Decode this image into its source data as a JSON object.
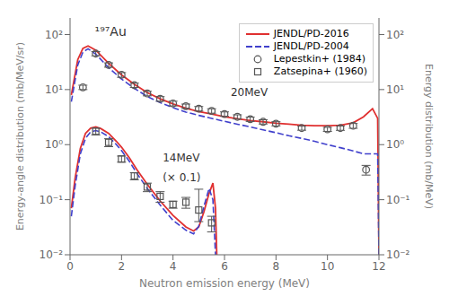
{
  "chart_data": {
    "type": "line",
    "xlabel": "Neutron emission energy (MeV)",
    "ylabel": "Energy-angle distribution (mb/MeV/sr)",
    "y2label": "Energy distribution (mb/MeV)",
    "log": "y",
    "xlim": [
      0,
      12
    ],
    "xticks": [
      0,
      2,
      4,
      6,
      8,
      10,
      12
    ],
    "ylim": [
      0.01,
      200
    ],
    "yticks": [
      {
        "value": 0.01,
        "label": "10⁻²"
      },
      {
        "value": 0.1,
        "label": "10⁻¹"
      },
      {
        "value": 1,
        "label": "10⁰"
      },
      {
        "value": 10,
        "label": "10¹"
      },
      {
        "value": 100,
        "label": "10²"
      }
    ],
    "y2lim": [
      0.01,
      200
    ],
    "y2ticks": [
      {
        "value": 0.01,
        "label": "10⁻²"
      },
      {
        "value": 0.1,
        "label": "10⁻¹"
      },
      {
        "value": 1,
        "label": "10⁰"
      },
      {
        "value": 10,
        "label": "10¹"
      },
      {
        "value": 100,
        "label": "10²"
      }
    ],
    "grid": false,
    "legend": "upper right",
    "annotations": [
      "¹⁹⁷Au",
      "20MeV",
      "14MeV",
      "(× 0.1)"
    ],
    "series": [
      {
        "name": "JENDL/PD-2016",
        "type": "line",
        "color": "#e03030",
        "line_style": "solid",
        "x": [
          0.05,
          0.3,
          0.5,
          0.7,
          1.0,
          1.5,
          2.0,
          2.5,
          3.0,
          3.5,
          4.0,
          4.5,
          5.0,
          5.5,
          6.0,
          6.5,
          7.0,
          7.5,
          8.0,
          8.5,
          9.0,
          9.5,
          10.0,
          10.5,
          11.0,
          11.4,
          11.75,
          11.95,
          12.0
        ],
        "values": [
          8.0,
          35.0,
          56.0,
          62.0,
          52.0,
          30.0,
          18.5,
          12.5,
          8.8,
          6.8,
          5.5,
          4.6,
          4.0,
          3.6,
          3.2,
          2.95,
          2.75,
          2.6,
          2.45,
          2.35,
          2.25,
          2.2,
          2.2,
          2.25,
          2.5,
          3.2,
          4.5,
          3.0,
          0.01
        ]
      },
      {
        "name": "JENDL/PD-2004",
        "type": "line",
        "color": "#4040cc",
        "line_style": "dashed",
        "x": [
          0.05,
          0.3,
          0.5,
          0.7,
          1.0,
          1.5,
          2.0,
          2.5,
          3.0,
          3.5,
          4.0,
          4.5,
          5.0,
          5.5,
          6.0,
          6.5,
          7.0,
          7.5,
          8.0,
          8.5,
          9.0,
          9.5,
          10.0,
          10.5,
          11.0,
          11.4,
          11.5,
          11.95,
          12.0
        ],
        "values": [
          6.0,
          28.0,
          48.0,
          55.0,
          44.0,
          25.0,
          15.5,
          10.5,
          7.5,
          5.8,
          4.7,
          3.9,
          3.4,
          3.0,
          2.65,
          2.35,
          2.1,
          1.85,
          1.65,
          1.45,
          1.3,
          1.15,
          1.0,
          0.88,
          0.77,
          0.68,
          0.68,
          0.68,
          0.01
        ]
      },
      {
        "type": "line",
        "color": "#e03030",
        "line_style": "solid",
        "x": [
          0.05,
          0.2,
          0.4,
          0.6,
          0.8,
          1.0,
          1.2,
          1.5,
          1.8,
          2.0,
          2.3,
          2.6,
          3.0,
          3.5,
          4.0,
          4.5,
          4.8,
          5.0,
          5.2,
          5.4,
          5.55,
          5.65,
          5.7
        ],
        "values": [
          0.07,
          0.25,
          0.85,
          1.6,
          2.0,
          2.1,
          1.95,
          1.6,
          1.15,
          0.9,
          0.58,
          0.35,
          0.19,
          0.095,
          0.052,
          0.032,
          0.027,
          0.032,
          0.06,
          0.13,
          0.2,
          0.07,
          0.01
        ]
      },
      {
        "type": "line",
        "color": "#4040cc",
        "line_style": "dashed",
        "x": [
          0.05,
          0.2,
          0.4,
          0.6,
          0.8,
          1.0,
          1.2,
          1.5,
          1.8,
          2.0,
          2.3,
          2.6,
          3.0,
          3.5,
          4.0,
          4.5,
          4.8,
          5.0,
          5.2,
          5.4,
          5.55,
          5.65
        ],
        "values": [
          0.05,
          0.18,
          0.68,
          1.3,
          1.7,
          1.8,
          1.7,
          1.4,
          1.0,
          0.78,
          0.5,
          0.3,
          0.16,
          0.08,
          0.042,
          0.028,
          0.024,
          0.033,
          0.075,
          0.16,
          0.1,
          0.01
        ]
      },
      {
        "name": "Lepestkin+ (1984)",
        "type": "scatter",
        "color": "#555555",
        "marker": "circle",
        "x": [
          0.5,
          1.0,
          1.5,
          2.0,
          2.5,
          3.0,
          3.5,
          4.0,
          4.5,
          5.0,
          5.5,
          6.0,
          6.5,
          7.0,
          7.5,
          8.0,
          9.0,
          10.0,
          10.5,
          11.0,
          11.5
        ],
        "values": [
          11.0,
          45.0,
          28.0,
          18.5,
          12.0,
          8.5,
          6.8,
          5.6,
          5.0,
          4.5,
          4.1,
          3.6,
          3.2,
          2.9,
          2.6,
          2.4,
          2.0,
          1.9,
          2.0,
          2.2,
          0.35
        ],
        "errors": [
          1.0,
          4.0,
          2.5,
          1.8,
          1.1,
          0.8,
          0.65,
          0.55,
          0.45,
          0.42,
          0.38,
          0.33,
          0.28,
          0.26,
          0.23,
          0.21,
          0.17,
          0.16,
          0.18,
          0.22,
          0.07
        ]
      },
      {
        "name": "Zatsepina+ (1960)",
        "type": "scatter",
        "color": "#555555",
        "marker": "square",
        "x": [
          1.0,
          1.5,
          2.0,
          2.5,
          3.0,
          3.5,
          4.0,
          4.5,
          5.0,
          5.5
        ],
        "values": [
          1.75,
          1.1,
          0.55,
          0.27,
          0.17,
          0.115,
          0.082,
          0.09,
          0.065,
          0.038
        ],
        "errors_low": [
          0.25,
          0.18,
          0.07,
          0.04,
          0.03,
          0.025,
          0.012,
          0.02,
          0.025,
          0.012
        ],
        "errors_high": [
          0.25,
          0.18,
          0.07,
          0.04,
          0.03,
          0.025,
          0.012,
          0.02,
          0.09,
          0.012
        ]
      }
    ]
  }
}
